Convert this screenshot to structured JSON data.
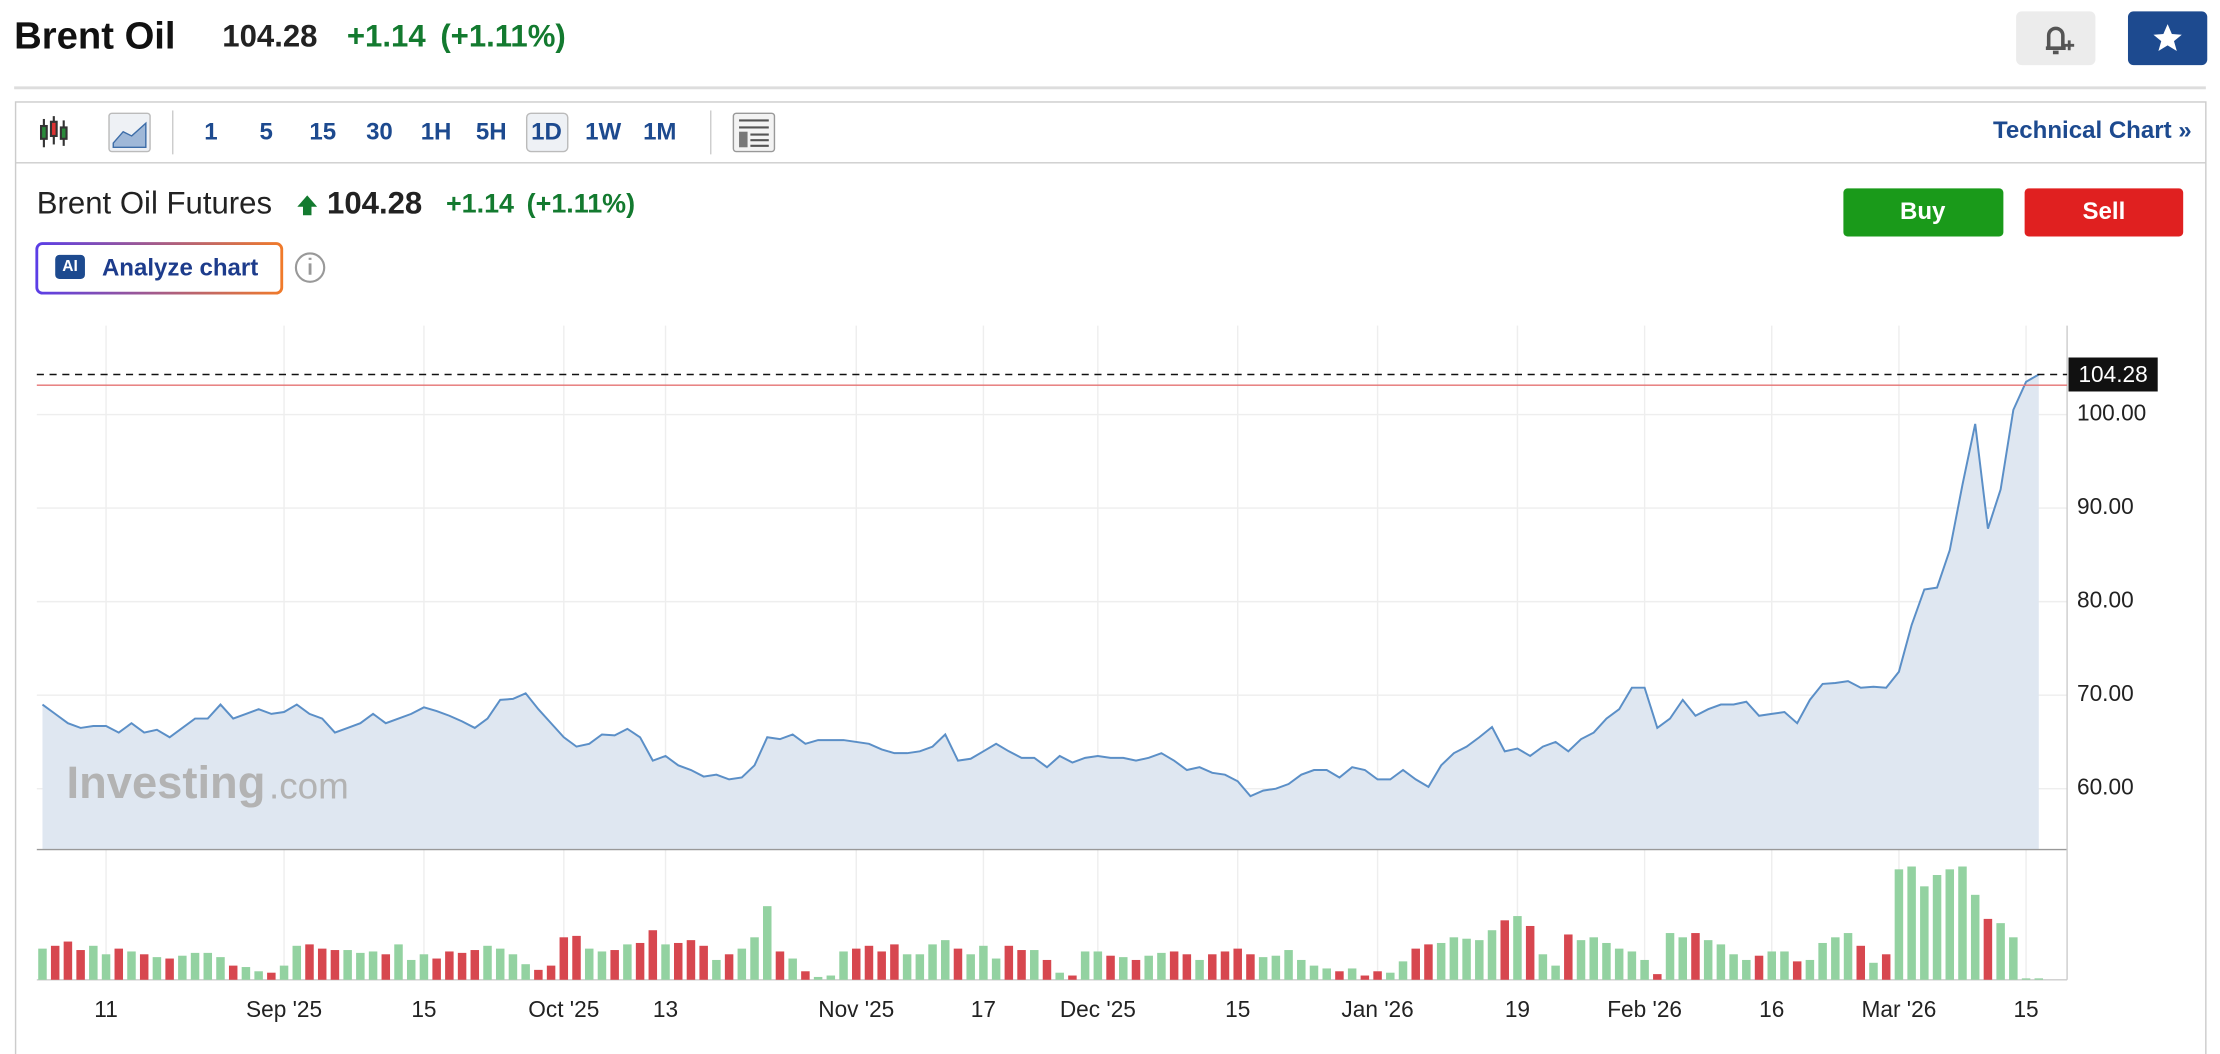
{
  "header": {
    "title": "Brent Oil",
    "price": "104.28",
    "change": "+1.14",
    "change_pct": "(+1.11%)"
  },
  "toolbar": {
    "intervals": [
      "1",
      "5",
      "15",
      "30",
      "1H",
      "5H",
      "1D",
      "1W",
      "1M"
    ],
    "technical_chart": "Technical Chart »"
  },
  "instrument": {
    "name": "Brent Oil Futures",
    "price": "104.28",
    "change": "+1.14",
    "change_pct": "(+1.11%)"
  },
  "buttons": {
    "ai_badge": "AI",
    "analyze": "Analyze chart",
    "buy": "Buy",
    "sell": "Sell"
  },
  "watermark": {
    "brand": "Investing",
    "suffix": ".com"
  },
  "chart_data": [
    {
      "type": "area",
      "color": "#5b8fc7",
      "fill": "#dfe7f1",
      "categories": [
        null,
        null,
        null,
        null,
        null,
        "11",
        null,
        null,
        null,
        null,
        null,
        null,
        null,
        null,
        null,
        null,
        null,
        null,
        null,
        "Sep '25",
        null,
        null,
        null,
        null,
        null,
        null,
        null,
        null,
        null,
        null,
        "15",
        null,
        null,
        null,
        null,
        null,
        null,
        null,
        null,
        null,
        null,
        "Oct '25",
        null,
        null,
        null,
        null,
        null,
        null,
        null,
        "13",
        null,
        null,
        null,
        null,
        null,
        null,
        null,
        null,
        null,
        null,
        null,
        null,
        null,
        null,
        "Nov '25",
        null,
        null,
        null,
        null,
        null,
        null,
        null,
        null,
        null,
        "17",
        null,
        null,
        null,
        null,
        null,
        null,
        null,
        null,
        "Dec '25",
        null,
        null,
        null,
        null,
        null,
        null,
        null,
        null,
        null,
        null,
        "15",
        null,
        null,
        null,
        null,
        null,
        null,
        null,
        null,
        null,
        null,
        "Jan '26",
        null,
        null,
        null,
        null,
        null,
        null,
        null,
        null,
        null,
        null,
        "19",
        null,
        null,
        null,
        null,
        null,
        null,
        null,
        null,
        null,
        "Feb '26",
        null,
        null,
        null,
        null,
        null,
        null,
        null,
        null,
        null,
        "16",
        null,
        null,
        null,
        null,
        null,
        null,
        null,
        null,
        null,
        "Mar '26",
        null,
        null,
        null,
        null,
        null,
        null,
        null,
        null,
        null,
        "15",
        null
      ],
      "values": [
        69,
        68,
        67,
        66.5,
        66.7,
        66.7,
        66,
        67,
        66,
        66.3,
        65.5,
        66.5,
        67.5,
        67.5,
        69,
        67.5,
        68,
        68.5,
        68,
        68.2,
        69,
        68,
        67.5,
        66,
        66.5,
        67,
        68,
        67,
        67.5,
        68,
        68.7,
        68.3,
        67.8,
        67.2,
        66.5,
        67.5,
        69.5,
        69.6,
        70.2,
        68.5,
        67,
        65.5,
        64.5,
        64.8,
        65.8,
        65.7,
        66.4,
        65.5,
        63,
        63.5,
        62.5,
        62,
        61.3,
        61.5,
        61,
        61.2,
        62.5,
        65.5,
        65.3,
        65.8,
        64.8,
        65.2,
        65.2,
        65.2,
        65,
        64.8,
        64.2,
        63.8,
        63.8,
        64,
        64.5,
        65.8,
        63,
        63.2,
        64,
        64.8,
        64,
        63.3,
        63.3,
        62.3,
        63.5,
        62.8,
        63.3,
        63.5,
        63.3,
        63.3,
        63,
        63.3,
        63.8,
        63,
        62,
        62.3,
        61.7,
        61.5,
        60.8,
        59.2,
        59.8,
        60,
        60.5,
        61.5,
        62,
        62,
        61.2,
        62.3,
        62,
        61,
        61,
        62,
        61,
        60.2,
        62.5,
        63.8,
        64.5,
        65.5,
        66.6,
        64,
        64.3,
        63.5,
        64.5,
        65,
        64,
        65.3,
        66,
        67.5,
        68.5,
        70.8,
        70.8,
        66.5,
        67.5,
        69.5,
        67.8,
        68.5,
        69,
        69,
        69.3,
        67.8,
        68,
        68.2,
        67,
        69.5,
        71.2,
        71.3,
        71.5,
        70.8,
        70.9,
        70.8,
        72.5,
        77.5,
        81.3,
        81.5,
        85.5,
        92.5,
        99,
        87.8,
        92,
        100.5,
        103.5,
        104.28
      ],
      "ylim": [
        53.5,
        109.5
      ],
      "yticks": [
        {
          "value": 60,
          "label": "60.00"
        },
        {
          "value": 70,
          "label": "70.00"
        },
        {
          "value": 80,
          "label": "80.00"
        },
        {
          "value": 90,
          "label": "90.00"
        },
        {
          "value": 100,
          "label": "100.00"
        }
      ],
      "grid": true,
      "last_price": 104.28,
      "reference_line": 103.14,
      "reference_color": "#e57373"
    },
    {
      "type": "bar",
      "up_color": "#93d2a1",
      "down_color": "#d7474f",
      "values": [
        22,
        24,
        27,
        21,
        24,
        18,
        22,
        20,
        18,
        16,
        15,
        17,
        19,
        19,
        16,
        10,
        9,
        6,
        5,
        10,
        24,
        25,
        22,
        21,
        21,
        19,
        20,
        18,
        25,
        14,
        18,
        15,
        20,
        19,
        21,
        24,
        22,
        18,
        11,
        7,
        10,
        30,
        31,
        22,
        20,
        21,
        25,
        26,
        35,
        25,
        26,
        28,
        24,
        14,
        18,
        22,
        30,
        52,
        20,
        15,
        6,
        2,
        3,
        20,
        22,
        24,
        20,
        25,
        18,
        18,
        25,
        28,
        22,
        18,
        24,
        15,
        24,
        21,
        21,
        14,
        5,
        3,
        20,
        20,
        17,
        16,
        14,
        17,
        19,
        20,
        18,
        14,
        18,
        20,
        22,
        18,
        16,
        17,
        21,
        14,
        10,
        8,
        6,
        8,
        3,
        6,
        5,
        13,
        22,
        25,
        26,
        30,
        29,
        28,
        35,
        42,
        45,
        38,
        18,
        10,
        32,
        28,
        30,
        26,
        22,
        20,
        14,
        4,
        33,
        30,
        33,
        28,
        25,
        18,
        14,
        17,
        20,
        20,
        13,
        14,
        26,
        30,
        33,
        24,
        12,
        18,
        78,
        80,
        66,
        74,
        78,
        80,
        60,
        43,
        40,
        30,
        1,
        1
      ]
    }
  ]
}
